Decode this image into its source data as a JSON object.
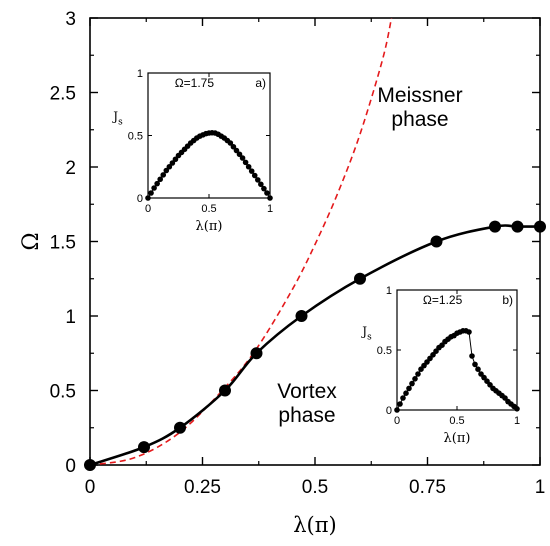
{
  "chart_data": [
    {
      "type": "line",
      "xlabel": "λ(π)",
      "ylabel": "Ω",
      "xlim": [
        0,
        1
      ],
      "ylim": [
        0,
        3
      ],
      "xticks": [
        "0",
        "0.25",
        "0.5",
        "0.75",
        "1"
      ],
      "yticks": [
        "0",
        "0.5",
        "1",
        "1.5",
        "2",
        "2.5",
        "3"
      ],
      "regions": [
        {
          "line1": "Meissner",
          "line2": "phase"
        },
        {
          "line1": "Vortex",
          "line2": "phase"
        }
      ],
      "series": [
        {
          "style": "solid-line-with-markers",
          "color": "#000000",
          "x": [
            0.0,
            0.12,
            0.2,
            0.3,
            0.37,
            0.47,
            0.6,
            0.77,
            0.9,
            0.95,
            1.0
          ],
          "y": [
            0.0,
            0.12,
            0.25,
            0.5,
            0.75,
            1.0,
            1.25,
            1.5,
            1.6,
            1.6,
            1.6
          ]
        },
        {
          "style": "dashed",
          "color": "#e41a1c",
          "x": [
            0.0,
            0.1,
            0.2,
            0.3,
            0.37,
            0.45,
            0.5,
            0.55,
            0.6,
            0.65,
            0.67
          ],
          "y": [
            0.0,
            0.05,
            0.22,
            0.52,
            0.78,
            1.18,
            1.48,
            1.82,
            2.22,
            2.72,
            3.0
          ]
        }
      ]
    },
    {
      "type": "scatter",
      "panel": "a)",
      "annotation": "Ω=1.75",
      "xlabel": "λ(π)",
      "ylabel": "J",
      "ylabel_sub": "s",
      "xlim": [
        0,
        1
      ],
      "ylim": [
        0,
        1
      ],
      "xticks": [
        "0",
        "0.5",
        "1"
      ],
      "yticks": [
        "0",
        "0.5",
        "1"
      ],
      "x": [
        0.0,
        0.025,
        0.05,
        0.075,
        0.1,
        0.125,
        0.15,
        0.175,
        0.2,
        0.225,
        0.25,
        0.275,
        0.3,
        0.325,
        0.35,
        0.375,
        0.4,
        0.425,
        0.45,
        0.475,
        0.5,
        0.525,
        0.55,
        0.575,
        0.6,
        0.625,
        0.65,
        0.675,
        0.7,
        0.725,
        0.75,
        0.775,
        0.8,
        0.825,
        0.85,
        0.875,
        0.9,
        0.925,
        0.95,
        0.975,
        1.0
      ],
      "y": [
        0.0,
        0.04,
        0.08,
        0.115,
        0.15,
        0.185,
        0.22,
        0.25,
        0.28,
        0.31,
        0.34,
        0.365,
        0.39,
        0.415,
        0.44,
        0.46,
        0.48,
        0.495,
        0.505,
        0.515,
        0.52,
        0.522,
        0.52,
        0.51,
        0.495,
        0.48,
        0.46,
        0.44,
        0.41,
        0.38,
        0.35,
        0.32,
        0.285,
        0.25,
        0.215,
        0.18,
        0.145,
        0.11,
        0.075,
        0.04,
        0.0
      ]
    },
    {
      "type": "scatter",
      "panel": "b)",
      "annotation": "Ω=1.25",
      "xlabel": "λ(π)",
      "ylabel": "J",
      "ylabel_sub": "s",
      "xlim": [
        0,
        1
      ],
      "ylim": [
        0,
        1
      ],
      "xticks": [
        "0",
        "0.5",
        "1"
      ],
      "yticks": [
        "0",
        "0.5",
        "1"
      ],
      "x": [
        0.0,
        0.025,
        0.05,
        0.075,
        0.1,
        0.125,
        0.15,
        0.175,
        0.2,
        0.225,
        0.25,
        0.275,
        0.3,
        0.325,
        0.35,
        0.375,
        0.4,
        0.425,
        0.45,
        0.475,
        0.5,
        0.525,
        0.55,
        0.575,
        0.6,
        0.625,
        0.65,
        0.675,
        0.7,
        0.725,
        0.75,
        0.775,
        0.8,
        0.825,
        0.85,
        0.875,
        0.9,
        0.925,
        0.95,
        0.975,
        1.0
      ],
      "y": [
        0.0,
        0.05,
        0.1,
        0.14,
        0.18,
        0.22,
        0.26,
        0.3,
        0.34,
        0.37,
        0.4,
        0.43,
        0.46,
        0.49,
        0.52,
        0.54,
        0.57,
        0.59,
        0.61,
        0.62,
        0.64,
        0.65,
        0.66,
        0.66,
        0.65,
        0.45,
        0.38,
        0.34,
        0.3,
        0.27,
        0.24,
        0.21,
        0.18,
        0.16,
        0.14,
        0.12,
        0.1,
        0.07,
        0.05,
        0.03,
        0.01
      ]
    }
  ]
}
